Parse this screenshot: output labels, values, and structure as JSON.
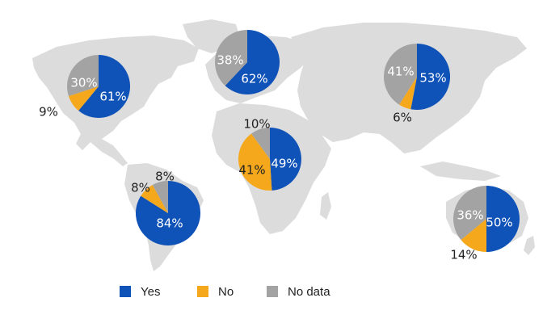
{
  "colors": {
    "yes": "#0F52B8",
    "no": "#F5A81C",
    "no_data": "#A3A3A3",
    "land": "#DCDCDC"
  },
  "legend": [
    {
      "label": "Yes",
      "color_key": "yes"
    },
    {
      "label": "No",
      "color_key": "no"
    },
    {
      "label": "No data",
      "color_key": "no_data"
    }
  ],
  "chart_data": {
    "type": "pie",
    "title": "",
    "background": "world map",
    "categories": [
      "Yes",
      "No",
      "No data"
    ],
    "pies": [
      {
        "region": "North America",
        "values": {
          "Yes": 61,
          "No": 9,
          "No data": 30
        },
        "labels": {
          "Yes": "61%",
          "No": "9%",
          "No data": "30%"
        }
      },
      {
        "region": "Europe",
        "values": {
          "Yes": 62,
          "No": 0,
          "No data": 38
        },
        "labels": {
          "Yes": "62%",
          "No data": "38%"
        }
      },
      {
        "region": "Asia",
        "values": {
          "Yes": 53,
          "No": 6,
          "No data": 41
        },
        "labels": {
          "Yes": "53%",
          "No": "6%",
          "No data": "41%"
        }
      },
      {
        "region": "Africa",
        "values": {
          "Yes": 49,
          "No": 41,
          "No data": 10
        },
        "labels": {
          "Yes": "49%",
          "No": "41%",
          "No data": "10%"
        }
      },
      {
        "region": "South America",
        "values": {
          "Yes": 84,
          "No": 8,
          "No data": 8
        },
        "labels": {
          "Yes": "84%",
          "No": "8%",
          "No data": "8%"
        }
      },
      {
        "region": "Oceania",
        "values": {
          "Yes": 50,
          "No": 14,
          "No data": 36
        },
        "labels": {
          "Yes": "50%",
          "No": "14%",
          "No data": "36%"
        }
      }
    ]
  }
}
